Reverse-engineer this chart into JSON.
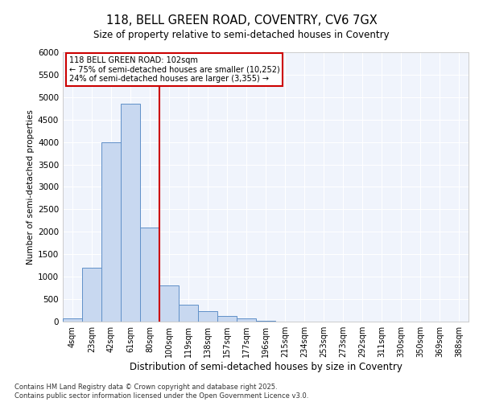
{
  "title_line1": "118, BELL GREEN ROAD, COVENTRY, CV6 7GX",
  "title_line2": "Size of property relative to semi-detached houses in Coventry",
  "xlabel": "Distribution of semi-detached houses by size in Coventry",
  "ylabel": "Number of semi-detached properties",
  "footnote": "Contains HM Land Registry data © Crown copyright and database right 2025.\nContains public sector information licensed under the Open Government Licence v3.0.",
  "annotation_title": "118 BELL GREEN ROAD: 102sqm",
  "annotation_line2": "← 75% of semi-detached houses are smaller (10,252)",
  "annotation_line3": "24% of semi-detached houses are larger (3,355) →",
  "categories": [
    "4sqm",
    "23sqm",
    "42sqm",
    "61sqm",
    "80sqm",
    "100sqm",
    "119sqm",
    "138sqm",
    "157sqm",
    "177sqm",
    "196sqm",
    "215sqm",
    "234sqm",
    "253sqm",
    "273sqm",
    "292sqm",
    "311sqm",
    "330sqm",
    "350sqm",
    "369sqm",
    "388sqm"
  ],
  "values": [
    75,
    1200,
    4000,
    4850,
    2100,
    800,
    375,
    225,
    125,
    75,
    25,
    0,
    0,
    0,
    0,
    0,
    0,
    0,
    0,
    0,
    0
  ],
  "bar_color": "#c8d8f0",
  "bar_edge_color": "#6090c8",
  "vline_color": "#cc0000",
  "annotation_box_edgecolor": "#cc0000",
  "background_color": "#ffffff",
  "plot_bg_color": "#f0f4fc",
  "ylim": [
    0,
    6000
  ],
  "yticks": [
    0,
    500,
    1000,
    1500,
    2000,
    2500,
    3000,
    3500,
    4000,
    4500,
    5000,
    5500,
    6000
  ],
  "vline_bin_index": 5
}
